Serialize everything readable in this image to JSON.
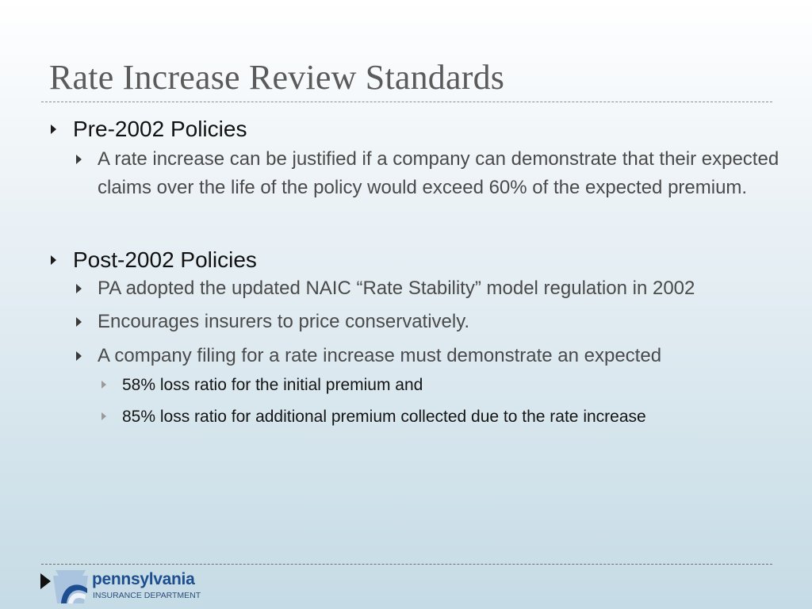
{
  "title": "Rate Increase Review Standards",
  "sections": [
    {
      "heading": "Pre-2002 Policies",
      "bullets": [
        "A rate increase can be justified if a company can demonstrate that their expected claims over the life of the policy would exceed 60% of the expected premium."
      ]
    },
    {
      "heading": "Post-2002 Policies",
      "bullets": [
        "PA adopted the updated NAIC “Rate Stability” model regulation in 2002",
        "Encourages insurers to price conservatively.",
        "A company filing for a rate increase must demonstrate an expected"
      ],
      "sub_bullets": [
        "58% loss ratio for the initial premium and",
        "85% loss ratio for additional premium collected due to the rate increase"
      ]
    }
  ],
  "footer": {
    "logo_name": "pennsylvania",
    "logo_sub": "INSURANCE DEPARTMENT",
    "logo_icon": "keystone-icon"
  },
  "colors": {
    "title": "#5b5b5b",
    "logo_blue": "#1d4e8f"
  }
}
